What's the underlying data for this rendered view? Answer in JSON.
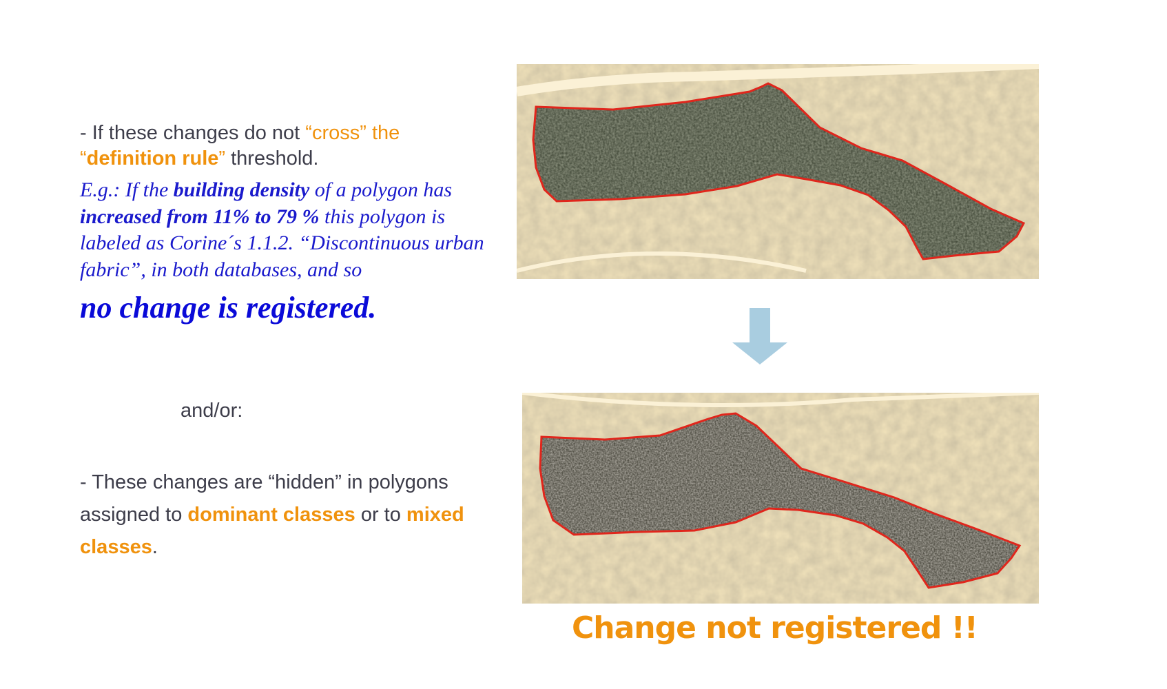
{
  "left": {
    "para1": {
      "prefix": "- If these changes do not ",
      "cross": "“cross” the",
      "def_rule_open": "“",
      "def_rule": "definition rule",
      "def_rule_close": "”",
      "suffix": " threshold."
    },
    "example": {
      "t1": "E.g.: If the ",
      "b1": "building density",
      "t2": " of a polygon has ",
      "b2": "increased from 11% to 79 %",
      "t3": "  this polygon is labeled as Corine´s 1.1.2. “Discontinuous urban fabric”, in both databases, and so"
    },
    "no_change": "no change is registered.",
    "and_or": "and/or:",
    "para3": {
      "t1": "- These changes are “hidden” in polygons assigned to ",
      "o1": "dominant classes",
      "t2": " or to ",
      "o2": "mixed classes",
      "t3": "."
    }
  },
  "right": {
    "caption": "Change not registered !!"
  },
  "colors": {
    "orange": "#f0920d",
    "blue": "#1a1acc",
    "arrow": "#a9cde0",
    "polygon_outline": "#e0261c",
    "map_bg": "#f2e3bb"
  }
}
